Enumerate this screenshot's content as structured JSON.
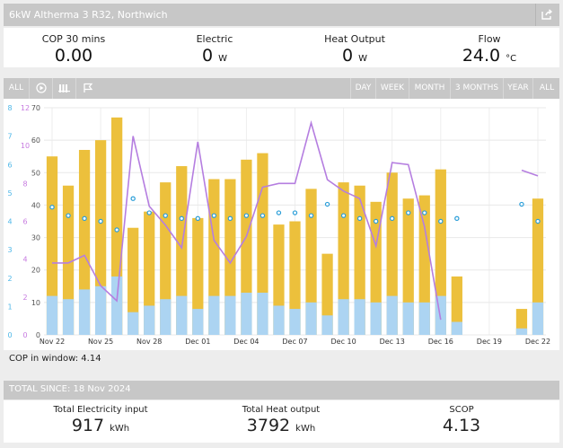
{
  "header": {
    "title": "6kW Altherma 3 R32, Northwich",
    "share_icon": "share-icon"
  },
  "stats": [
    {
      "label": "COP 30 mins",
      "value": "0.00",
      "unit": ""
    },
    {
      "label": "Electric",
      "value": "0",
      "unit": "W"
    },
    {
      "label": "Heat Output",
      "value": "0",
      "unit": "W"
    },
    {
      "label": "Flow",
      "value": "24.0",
      "unit": "°C"
    }
  ],
  "toolbar": {
    "all_left": "ALL",
    "icons": [
      "play-icon",
      "radiator-icon",
      "flag-icon"
    ],
    "ranges": [
      "DAY",
      "WEEK",
      "MONTH",
      "3 MONTHS",
      "YEAR",
      "ALL"
    ]
  },
  "colors": {
    "electric": "#acd4f2",
    "heat": "#ecc03c",
    "cop": "#b57ee0",
    "flow_dot": "#2b9ed8",
    "axis_blue": "#4eb7e8",
    "axis_pink": "#c77be0"
  },
  "chart_data": {
    "type": "bar",
    "x": [
      "Nov 22",
      "Nov 23",
      "Nov 24",
      "Nov 25",
      "Nov 26",
      "Nov 27",
      "Nov 28",
      "Nov 29",
      "Nov 30",
      "Dec 01",
      "Dec 02",
      "Dec 03",
      "Dec 04",
      "Dec 05",
      "Dec 06",
      "Dec 07",
      "Dec 08",
      "Dec 09",
      "Dec 10",
      "Dec 11",
      "Dec 12",
      "Dec 13",
      "Dec 14",
      "Dec 15",
      "Dec 16",
      "Dec 17",
      "Dec 18",
      "Dec 19",
      "Dec 20",
      "Dec 21",
      "Dec 22"
    ],
    "x_ticks": [
      "Nov 22",
      "Nov 25",
      "Nov 28",
      "Dec 01",
      "Dec 04",
      "Dec 07",
      "Dec 10",
      "Dec 13",
      "Dec 16",
      "Dec 19",
      "Dec 22"
    ],
    "series": [
      {
        "name": "Heat",
        "axis": "left",
        "values": [
          55,
          46,
          57,
          60,
          67,
          33,
          38,
          47,
          52,
          36,
          48,
          48,
          54,
          56,
          34,
          35,
          45,
          25,
          47,
          46,
          41,
          50,
          42,
          43,
          51,
          18,
          null,
          null,
          null,
          8,
          42
        ]
      },
      {
        "name": "Electric",
        "axis": "left",
        "values": [
          12,
          11,
          14,
          15,
          18,
          7,
          9,
          11,
          12,
          8,
          12,
          12,
          13,
          13,
          9,
          8,
          10,
          6,
          11,
          11,
          10,
          12,
          10,
          10,
          12,
          4,
          null,
          null,
          null,
          2,
          10
        ]
      },
      {
        "type": "line",
        "name": "COP",
        "axis": "cop",
        "values": [
          3.8,
          3.8,
          4.2,
          2.6,
          1.8,
          10.5,
          6.8,
          5.8,
          4.6,
          10.2,
          5.0,
          3.8,
          5.2,
          7.8,
          8.0,
          8.0,
          11.2,
          8.2,
          7.6,
          7.2,
          4.7,
          9.1,
          9.0,
          5.7,
          0.8,
          null,
          null,
          null,
          null,
          8.7,
          8.4
        ]
      },
      {
        "type": "scatter",
        "name": "Flow",
        "axis": "flow",
        "values": [
          4.5,
          4.2,
          4.1,
          4.0,
          3.7,
          4.8,
          4.3,
          4.2,
          4.1,
          4.1,
          4.2,
          4.1,
          4.2,
          4.2,
          4.3,
          4.3,
          4.2,
          4.6,
          4.2,
          4.1,
          4.0,
          4.1,
          4.3,
          4.3,
          4.0,
          4.1,
          null,
          null,
          null,
          4.6,
          4.0
        ]
      }
    ],
    "y_left": {
      "ticks": [
        "0",
        "10",
        "20",
        "30",
        "40",
        "50",
        "60",
        "70"
      ],
      "lim": [
        0,
        70
      ]
    },
    "y_cop": {
      "ticks": [
        "0",
        "2",
        "4",
        "6",
        "8",
        "10",
        "12"
      ],
      "lim": [
        0,
        12
      ]
    },
    "y_flow": {
      "ticks": [
        "0",
        "1",
        "2",
        "3",
        "4",
        "5",
        "6",
        "7",
        "8"
      ],
      "lim": [
        0,
        8
      ]
    }
  },
  "cop_window": "COP in window: 4.14",
  "totals": {
    "title": "TOTAL SINCE: 18 Nov 2024",
    "items": [
      {
        "label": "Total Electricity input",
        "value": "917",
        "unit": "kWh"
      },
      {
        "label": "Total Heat output",
        "value": "3792",
        "unit": "kWh"
      },
      {
        "label": "SCOP",
        "value": "4.13",
        "unit": ""
      }
    ]
  }
}
